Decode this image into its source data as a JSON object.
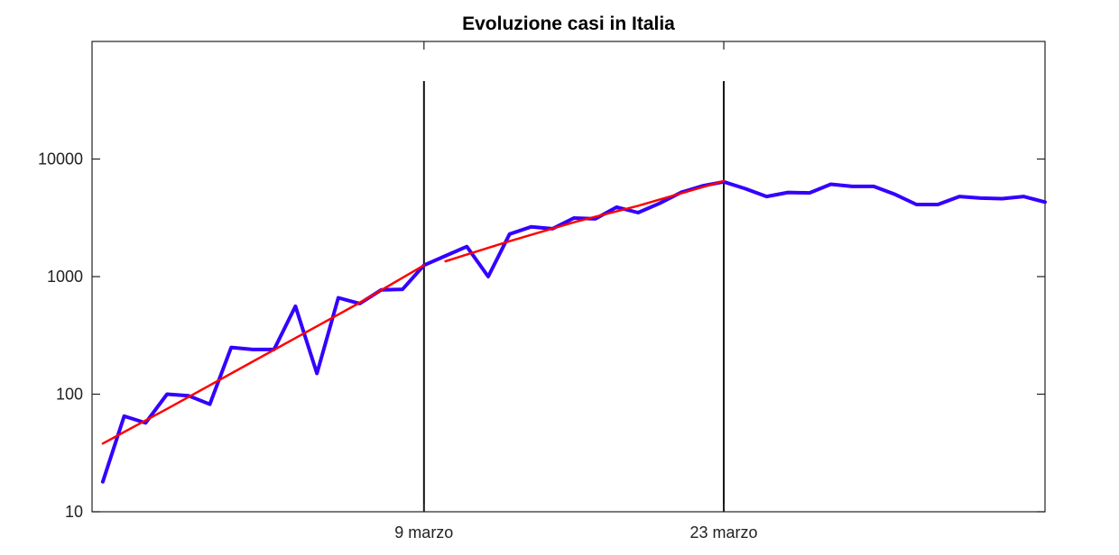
{
  "chart_data": {
    "type": "line",
    "title": "Evoluzione casi in Italia",
    "xlabel": "",
    "ylabel": "",
    "yscale": "log",
    "ylim": [
      10,
      100000
    ],
    "xlim": [
      0.5,
      45
    ],
    "grid": false,
    "legend": "none",
    "x_ticks": [
      {
        "x": 16,
        "label": "9 marzo"
      },
      {
        "x": 30,
        "label": "23 marzo"
      }
    ],
    "y_ticks": [
      {
        "value": 10,
        "label": "10"
      },
      {
        "value": 100,
        "label": "100"
      },
      {
        "value": 1000,
        "label": "1000"
      },
      {
        "value": 10000,
        "label": "10000"
      }
    ],
    "vertical_lines": [
      {
        "x": 16,
        "y_top": 46000
      },
      {
        "x": 30,
        "y_top": 46000
      }
    ],
    "series": [
      {
        "color": "#3300ff",
        "style": "daily",
        "x": [
          1,
          2,
          3,
          4,
          5,
          6,
          7,
          8,
          9,
          10,
          11,
          12,
          13,
          14,
          15,
          16,
          17,
          18,
          19,
          20,
          21,
          22,
          23,
          24,
          25,
          26,
          27,
          28,
          29,
          30,
          31,
          32,
          33,
          34,
          35,
          36,
          37,
          38,
          39,
          40,
          41,
          42,
          43,
          44,
          45
        ],
        "y": [
          18,
          65,
          57,
          100,
          97,
          82,
          250,
          240,
          240,
          560,
          150,
          660,
          590,
          770,
          780,
          1250,
          1500,
          1800,
          1000,
          2300,
          2650,
          2550,
          3150,
          3100,
          3900,
          3500,
          4200,
          5200,
          5900,
          6400,
          5600,
          4800,
          5200,
          5150,
          6100,
          5850,
          5850,
          5000,
          4100,
          4100,
          4800,
          4650,
          4600,
          4800,
          4300
        ]
      },
      {
        "color": "#ff0000",
        "style": "fit-1",
        "x": [
          1,
          4,
          7,
          10,
          13,
          16
        ],
        "y": [
          38,
          75,
          150,
          300,
          600,
          1250
        ]
      },
      {
        "color": "#ff0000",
        "style": "fit-2",
        "x": [
          17,
          20,
          23,
          26,
          30
        ],
        "y": [
          1350,
          2000,
          2900,
          4000,
          6500
        ]
      }
    ]
  }
}
